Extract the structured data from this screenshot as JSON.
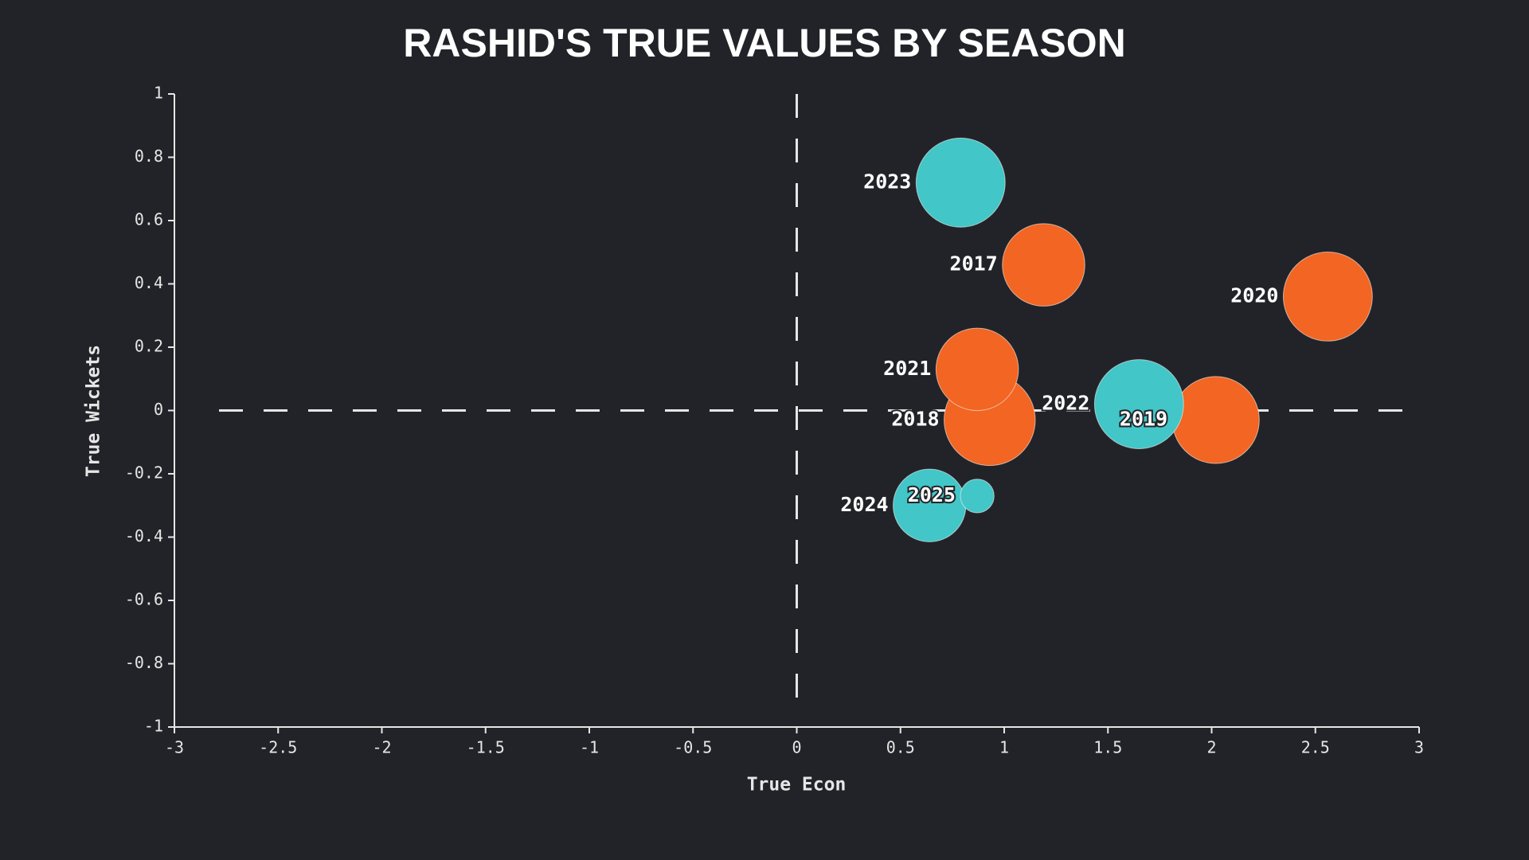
{
  "chart_data": {
    "type": "scatter",
    "title": "RASHID'S TRUE VALUES BY SEASON",
    "x_label": "True Econ",
    "y_label": "True Wickets",
    "labels": [
      "2017",
      "2018",
      "2019",
      "2020",
      "2021",
      "2022",
      "2023",
      "2024",
      "2025"
    ],
    "x": [
      1.19,
      0.93,
      2.02,
      2.56,
      0.87,
      1.65,
      0.79,
      0.64,
      0.87
    ],
    "y": [
      0.46,
      -0.03,
      -0.03,
      0.36,
      0.13,
      0.02,
      0.72,
      -0.3,
      -0.27
    ],
    "sizes": [
      18,
      22,
      20,
      21,
      18,
      21,
      21,
      14,
      3
    ],
    "colors": [
      "#f26522",
      "#f26522",
      "#f26522",
      "#f26522",
      "#f26522",
      "#42c6c8",
      "#42c6c8",
      "#42c6c8",
      "#42c6c8"
    ],
    "xlim": [
      -3,
      3
    ],
    "ylim": [
      -1,
      1
    ],
    "xticks": [
      -3,
      -2.5,
      -2,
      -1.5,
      -1,
      -0.5,
      0,
      0.5,
      1,
      1.5,
      2,
      2.5,
      3
    ],
    "yticks": [
      -1,
      -0.8,
      -0.6,
      -0.4,
      -0.2,
      0,
      0.2,
      0.4,
      0.6,
      0.8,
      1
    ],
    "reference_x": 0,
    "reference_y": 0
  }
}
